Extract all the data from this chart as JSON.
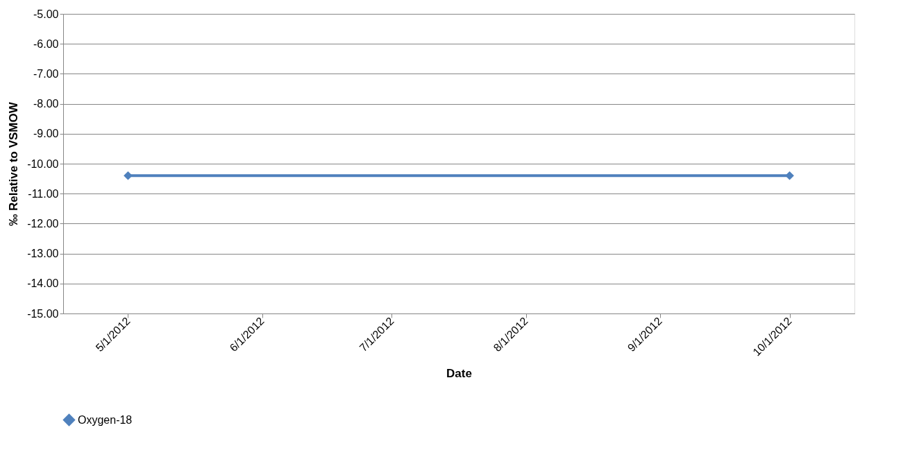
{
  "chart_data": {
    "type": "line",
    "xlabel": "Date",
    "ylabel": "‰ Relative to VSMOW",
    "x": [
      "2012-05-01",
      "2012-10-01"
    ],
    "series": [
      {
        "name": "Oxygen-18",
        "color": "#4f81bd",
        "values": [
          -10.4,
          -10.4
        ]
      }
    ],
    "xlim": [
      "2012-04-16",
      "2012-10-16"
    ],
    "xticks": [
      {
        "value": "2012-05-01",
        "label": "5/1/2012"
      },
      {
        "value": "2012-06-01",
        "label": "6/1/2012"
      },
      {
        "value": "2012-07-01",
        "label": "7/1/2012"
      },
      {
        "value": "2012-08-01",
        "label": "8/1/2012"
      },
      {
        "value": "2012-09-01",
        "label": "9/1/2012"
      },
      {
        "value": "2012-10-01",
        "label": "10/1/2012"
      }
    ],
    "ylim": [
      -15,
      -5
    ],
    "yticks": [
      {
        "value": -15,
        "label": "-15.00"
      },
      {
        "value": -14,
        "label": "-14.00"
      },
      {
        "value": -13,
        "label": "-13.00"
      },
      {
        "value": -12,
        "label": "-12.00"
      },
      {
        "value": -11,
        "label": "-11.00"
      },
      {
        "value": -10,
        "label": "-10.00"
      },
      {
        "value": -9,
        "label": "-9.00"
      },
      {
        "value": -8,
        "label": "-8.00"
      },
      {
        "value": -7,
        "label": "-7.00"
      },
      {
        "value": -6,
        "label": "-6.00"
      },
      {
        "value": -5,
        "label": "-5.00"
      }
    ],
    "grid": "y",
    "legend": "bottom",
    "marker": "diamond",
    "line_style": "solid"
  }
}
